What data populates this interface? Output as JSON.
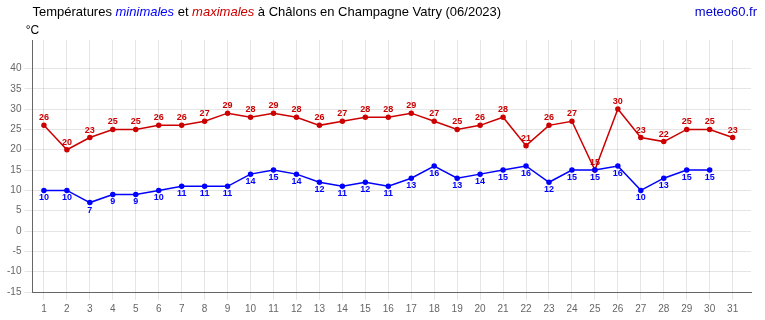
{
  "chart_data": {
    "type": "line",
    "title": "Températures minimales et maximales à Châlons en Champagne Vatry (06/2023)",
    "ylabel": "°C",
    "x": [
      1,
      2,
      3,
      4,
      5,
      6,
      7,
      8,
      9,
      10,
      11,
      12,
      13,
      14,
      15,
      16,
      17,
      18,
      19,
      20,
      21,
      22,
      23,
      24,
      25,
      26,
      27,
      28,
      29,
      30,
      31
    ],
    "series": [
      {
        "name": "minimales",
        "color": "#0000ff",
        "values": [
          10,
          10,
          7,
          9,
          9,
          10,
          11,
          11,
          11,
          14,
          15,
          14,
          12,
          11,
          12,
          11,
          13,
          16,
          13,
          14,
          15,
          16,
          12,
          15,
          15,
          16,
          10,
          13,
          15,
          15,
          null
        ]
      },
      {
        "name": "maximales",
        "color": "#cc0000",
        "values": [
          26,
          20,
          23,
          25,
          25,
          26,
          26,
          27,
          29,
          28,
          29,
          28,
          26,
          27,
          28,
          28,
          29,
          27,
          25,
          26,
          28,
          21,
          26,
          27,
          15,
          30,
          23,
          22,
          25,
          25,
          23
        ]
      }
    ],
    "xlim": [
      0.5,
      31.8
    ],
    "xticks": [
      1,
      2,
      3,
      4,
      5,
      6,
      7,
      8,
      9,
      10,
      11,
      12,
      13,
      14,
      15,
      16,
      17,
      18,
      19,
      20,
      21,
      22,
      23,
      24,
      25,
      26,
      27,
      28,
      29,
      30,
      31
    ],
    "ylim": [
      -15,
      47
    ],
    "yticks": [
      -15,
      -10,
      -5,
      0,
      5,
      10,
      15,
      20,
      25,
      30,
      35,
      40
    ],
    "grid": true,
    "legend": false,
    "data_labels": true,
    "annotations": [
      {
        "text": "meteo60.fr",
        "color": "#0000cc"
      }
    ]
  }
}
